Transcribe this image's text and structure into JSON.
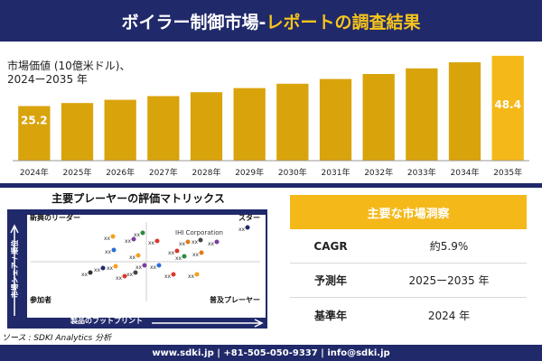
{
  "header": {
    "title_main": "ボイラー制御市場-",
    "title_accent": "レポートの調査結果"
  },
  "chart_label": {
    "line1": "市場価値  (10億米ドル)、",
    "line2": "2024ー2035 年"
  },
  "colors": {
    "navy": "#20296a",
    "bar": "#d9a30b",
    "bar_light": "#f4b819",
    "accent": "#f7c51b"
  },
  "chart_data": {
    "type": "bar",
    "categories": [
      "2024年",
      "2025年",
      "2026年",
      "2027年",
      "2028年",
      "2029年",
      "2030年",
      "2031年",
      "2032年",
      "2033年",
      "2034年",
      "2035年"
    ],
    "values": [
      25.2,
      26.6,
      28.1,
      29.8,
      31.6,
      33.5,
      35.5,
      37.7,
      40.0,
      42.6,
      45.4,
      48.4
    ],
    "data_labels": {
      "2024年": "25.2",
      "2035年": "48.4"
    },
    "title": "",
    "xlabel": "",
    "ylabel": "",
    "ylim": [
      0,
      50
    ]
  },
  "matrix": {
    "title": "主要プレーヤーの評価マトリックス",
    "top_left": "新興のリーダー",
    "top_right": "スター",
    "bottom_left": "参加者",
    "bottom_right": "普及プレーヤー",
    "x_axis": "製品のフットプリント",
    "y_axis": "市場シェア / 順位",
    "highlight": "IHI Corporation",
    "point_label": "xx"
  },
  "source": "ソース : SDKI Analytics 分析",
  "insights": {
    "title": "主要な市場洞察",
    "rows": [
      {
        "key": "CAGR",
        "value": "約5.9%"
      },
      {
        "key": "予測年",
        "value": "2025ー2035 年"
      },
      {
        "key": "基準年",
        "value": "2024 年"
      }
    ]
  },
  "footer": "www.sdki.jp | +81-505-050-9337 | info@sdki.jp"
}
